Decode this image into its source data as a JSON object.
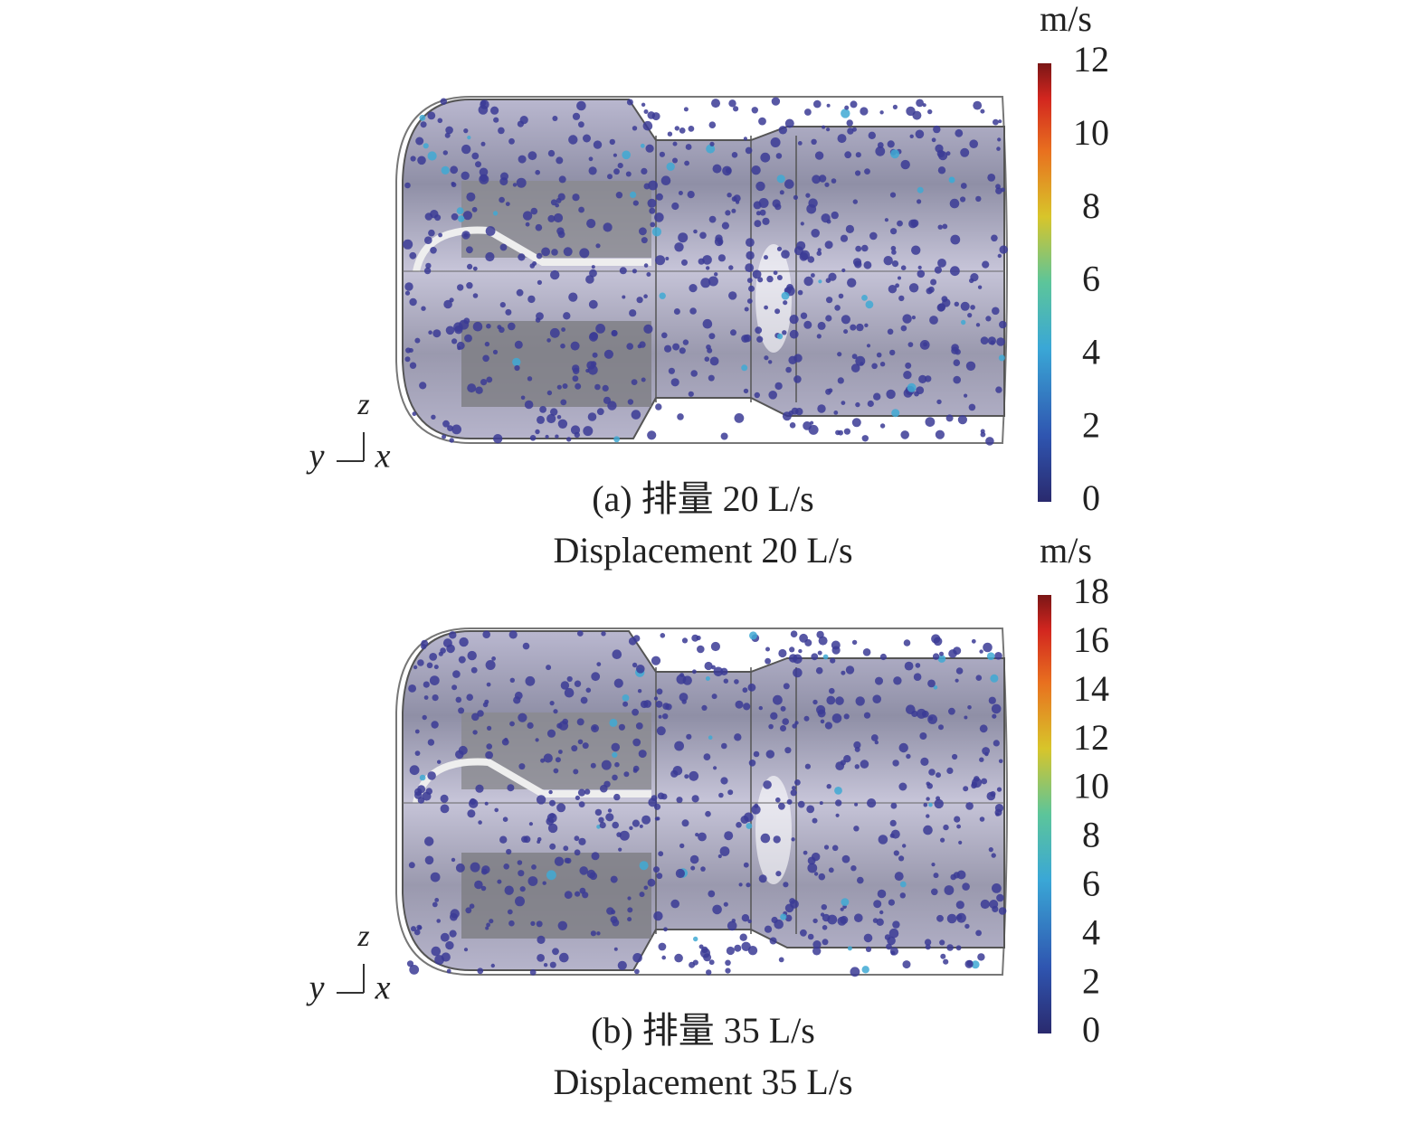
{
  "panels": [
    {
      "unit": "m/s",
      "colorbar_ticks": [
        0,
        2,
        4,
        6,
        8,
        10,
        12
      ],
      "axes": {
        "z": "z",
        "y": "y",
        "x": "x"
      },
      "caption_zh": "(a) 排量 20 L/s",
      "caption_en": "Displacement 20 L/s"
    },
    {
      "unit": "m/s",
      "colorbar_ticks": [
        0,
        2,
        4,
        6,
        8,
        10,
        12,
        14,
        16,
        18
      ],
      "axes": {
        "z": "z",
        "y": "y",
        "x": "x"
      },
      "caption_zh": "(b) 排量 35 L/s",
      "caption_en": "Displacement 35 L/s"
    }
  ]
}
